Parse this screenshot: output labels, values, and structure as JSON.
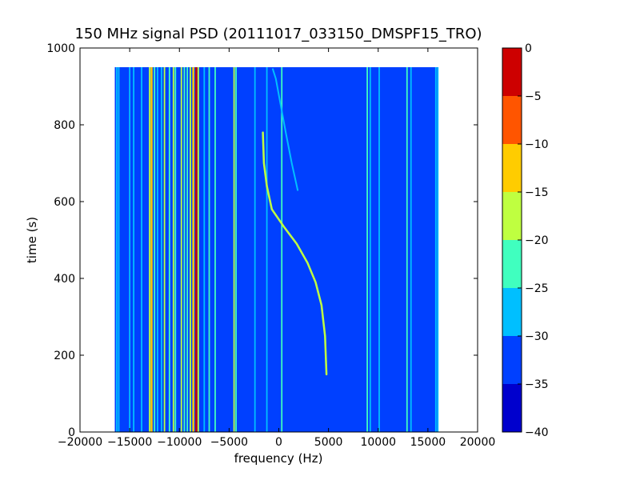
{
  "chart_data": {
    "type": "heatmap",
    "title": "150 MHz signal PSD (20111017_033150_DMSPF15_TRO)",
    "xlabel": "frequency (Hz)",
    "ylabel": "time (s)",
    "xlim": [
      -20000,
      20000
    ],
    "ylim": [
      0,
      1000
    ],
    "xticks": [
      -20000,
      -15000,
      -10000,
      -5000,
      0,
      5000,
      10000,
      15000,
      20000
    ],
    "xtick_labels": [
      "−20000",
      "−15000",
      "−10000",
      "−5000",
      "0",
      "5000",
      "10000",
      "15000",
      "20000"
    ],
    "yticks": [
      0,
      200,
      400,
      600,
      800,
      1000
    ],
    "ytick_labels": [
      "0",
      "200",
      "400",
      "600",
      "800",
      "1000"
    ],
    "data_extent": {
      "x": [
        -16500,
        16000
      ],
      "y": [
        0,
        950
      ]
    },
    "colorbar": {
      "levels": [
        -40,
        -35,
        -30,
        -25,
        -20,
        -15,
        -10,
        -5,
        0
      ],
      "tick_labels": [
        "−40",
        "−35",
        "−30",
        "−25",
        "−20",
        "−15",
        "−10",
        "−5",
        "0"
      ],
      "colors": [
        "#0000cd",
        "#0040ff",
        "#00bfff",
        "#40ffbf",
        "#bfff40",
        "#ffcc00",
        "#ff5500",
        "#cd0000"
      ]
    },
    "background_level": -33,
    "vertical_lines": [
      {
        "f": -16300,
        "level": -27
      },
      {
        "f": -16100,
        "level": -28
      },
      {
        "f": -15000,
        "level": -27
      },
      {
        "f": -14600,
        "level": -26
      },
      {
        "f": -13800,
        "level": -27
      },
      {
        "f": -13000,
        "level": -17
      },
      {
        "f": -12800,
        "level": -14
      },
      {
        "f": -12500,
        "level": -22
      },
      {
        "f": -12200,
        "level": -26
      },
      {
        "f": -11800,
        "level": -27
      },
      {
        "f": -11500,
        "level": -20
      },
      {
        "f": -11000,
        "level": -22
      },
      {
        "f": -10600,
        "level": -16
      },
      {
        "f": -10400,
        "level": -25
      },
      {
        "f": -9800,
        "level": -17
      },
      {
        "f": -9500,
        "level": -22
      },
      {
        "f": -9200,
        "level": -24
      },
      {
        "f": -8900,
        "level": -18
      },
      {
        "f": -8600,
        "level": -12
      },
      {
        "f": -8300,
        "level": -3
      },
      {
        "f": -8100,
        "level": -20
      },
      {
        "f": -7500,
        "level": -26
      },
      {
        "f": -7000,
        "level": -22
      },
      {
        "f": -6400,
        "level": -24
      },
      {
        "f": -4500,
        "level": -17
      },
      {
        "f": -4300,
        "level": -24
      },
      {
        "f": -2400,
        "level": -27
      },
      {
        "f": -1200,
        "level": -27
      },
      {
        "f": 300,
        "level": -22
      },
      {
        "f": 8900,
        "level": -24
      },
      {
        "f": 9200,
        "level": -26
      },
      {
        "f": 10100,
        "level": -27
      },
      {
        "f": 12900,
        "level": -23
      },
      {
        "f": 13300,
        "level": -27
      },
      {
        "f": 15800,
        "level": -27
      },
      {
        "f": 16000,
        "level": -26
      }
    ],
    "doppler_trace": [
      {
        "f": 4800,
        "t": 150
      },
      {
        "f": 4650,
        "t": 250
      },
      {
        "f": 4300,
        "t": 330
      },
      {
        "f": 3700,
        "t": 390
      },
      {
        "f": 2900,
        "t": 440
      },
      {
        "f": 1800,
        "t": 490
      },
      {
        "f": 500,
        "t": 535
      },
      {
        "f": -700,
        "t": 580
      },
      {
        "f": -1200,
        "t": 640
      },
      {
        "f": -1500,
        "t": 700
      },
      {
        "f": -1600,
        "t": 780
      }
    ],
    "doppler_trace_level": -17,
    "secondary_trace": [
      {
        "f": 1900,
        "t": 630
      },
      {
        "f": 1300,
        "t": 700
      },
      {
        "f": 700,
        "t": 780
      },
      {
        "f": 200,
        "t": 850
      },
      {
        "f": -300,
        "t": 920
      },
      {
        "f": -600,
        "t": 945
      }
    ],
    "secondary_trace_level": -26
  }
}
